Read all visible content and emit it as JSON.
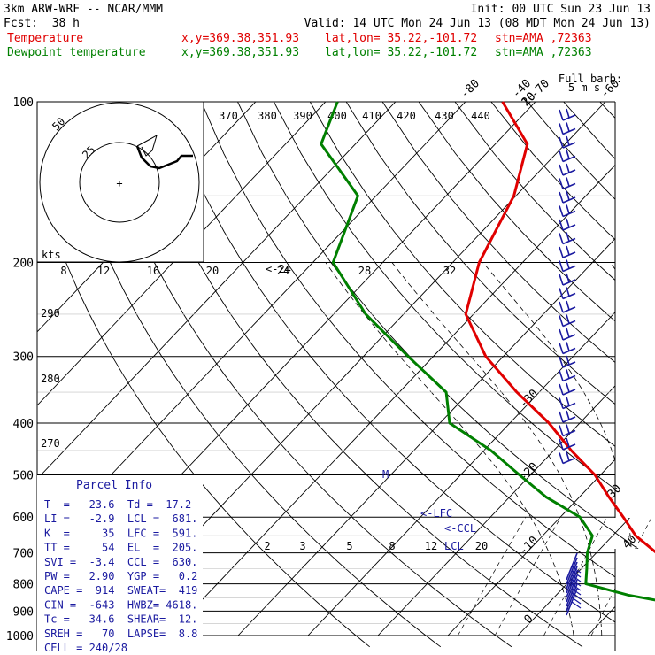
{
  "header": {
    "model": "3km ARW-WRF -- NCAR/MMM",
    "init": "Init: 00 UTC Sun 23 Jun 13",
    "fcst_label": "Fcst:",
    "fcst_value": "38 h",
    "valid": "Valid: 14 UTC Mon 24 Jun 13 (08 MDT Mon 24 Jun 13)",
    "temp_label": "Temperature",
    "dew_label": "Dewpoint temperature",
    "xy": "x,y=369.38,351.93",
    "latlon": "lat,lon= 35.22,-101.72",
    "stn": "stn=AMA ,72363"
  },
  "colors": {
    "temperature": "#e00000",
    "dewpoint": "#008000",
    "parcel_text": "#1a1aa0",
    "wind": "#1a1aa0"
  },
  "chart_data": {
    "type": "line",
    "title": "",
    "pressure_levels": [
      "100",
      "200",
      "300",
      "400",
      "500",
      "600",
      "700",
      "800",
      "900",
      "1000"
    ],
    "isotherm_labels": [
      "-80",
      "-70",
      "-60",
      "-50",
      "-40",
      "-30",
      "-20",
      "-10",
      "0",
      "10",
      "20",
      "30",
      "40"
    ],
    "theta_labels": [
      "370",
      "380",
      "390",
      "400",
      "410",
      "420",
      "430",
      "440"
    ],
    "theta_left_labels": [
      "290",
      "280",
      "270"
    ],
    "mixing_ratio_labels": [
      "2",
      "3",
      "5",
      "8",
      "12",
      "20"
    ],
    "hodo_labels": {
      "kts": "kts",
      "rings": [
        "8",
        "12",
        "16",
        "20",
        "24",
        "28",
        "32"
      ],
      "r50": "50",
      "r25": "25"
    },
    "wind_legend": {
      "line1": "Full barb:",
      "line2": "5 m s"
    },
    "markers": {
      "lfc": "<-LFC",
      "ccl": "<-CCL",
      "lcl": "LCL",
      "el": "M",
      "fz": "<-24"
    },
    "series": [
      {
        "name": "Temperature",
        "color": "#e00000",
        "points": [
          [
            100,
            -74.7
          ],
          [
            120,
            -65.4
          ],
          [
            150,
            -60.3
          ],
          [
            200,
            -56.2
          ],
          [
            250,
            -51.1
          ],
          [
            300,
            -42.5
          ],
          [
            350,
            -33.2
          ],
          [
            400,
            -24.4
          ],
          [
            450,
            -17.5
          ],
          [
            500,
            -10.8
          ],
          [
            550,
            -5.8
          ],
          [
            600,
            -1.0
          ],
          [
            650,
            3.3
          ],
          [
            700,
            8.6
          ],
          [
            750,
            14.3
          ],
          [
            800,
            22.8
          ],
          [
            840,
            26.3
          ],
          [
            860,
            18.6
          ],
          [
            870,
            17.2
          ]
        ]
      },
      {
        "name": "Dewpoint temperature",
        "color": "#008000",
        "points": [
          [
            100,
            -98.3
          ],
          [
            120,
            -94.9
          ],
          [
            150,
            -82.6
          ],
          [
            200,
            -77.1
          ],
          [
            250,
            -65.4
          ],
          [
            300,
            -53.6
          ],
          [
            350,
            -43.3
          ],
          [
            400,
            -38.6
          ],
          [
            450,
            -29.0
          ],
          [
            500,
            -21.6
          ],
          [
            550,
            -14.8
          ],
          [
            600,
            -7.2
          ],
          [
            650,
            -2.9
          ],
          [
            700,
            -1.3
          ],
          [
            750,
            0.8
          ],
          [
            800,
            2.7
          ],
          [
            840,
            10.3
          ],
          [
            860,
            15.3
          ],
          [
            870,
            16.1
          ]
        ]
      }
    ]
  },
  "parcel": {
    "title": "Parcel Info",
    "rows": [
      "T  =   23.6  Td =  17.2",
      "LI =   -2.9  LCL =  681.",
      "K  =     35  LFC =  591.",
      "TT =     54  EL  =  205.",
      "SVI =  -3.4  CCL =  630.",
      "PW =   2.90  YGP =   0.2",
      "CAPE =  914  SWEAT=  419",
      "CIN =  -643  HWBZ= 4618.",
      "Tc =   34.6  SHEAR=  12.",
      "SREH =   70  LAPSE=  8.8",
      "CELL = 240/28"
    ]
  }
}
